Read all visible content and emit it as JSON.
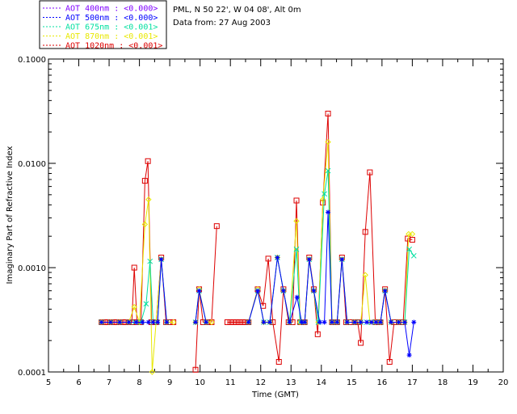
{
  "chart_data": {
    "type": "line",
    "title_lines": [
      "PML, N 50 22', W 04 08', Alt 0m",
      "Data from: 27 Aug 2003"
    ],
    "xlabel": "Time (GMT)",
    "ylabel": "Imaginary Part of Refractive Index",
    "xlim": [
      5,
      20
    ],
    "ylim": [
      0.0001,
      0.1
    ],
    "yscale": "log",
    "xticks": [
      5,
      6,
      7,
      8,
      9,
      10,
      11,
      12,
      13,
      14,
      15,
      16,
      17,
      18,
      19,
      20
    ],
    "yticks": [
      {
        "value": 0.0001,
        "label": "0.0001"
      },
      {
        "value": 0.001,
        "label": "0.0010"
      },
      {
        "value": 0.01,
        "label": "0.0100"
      },
      {
        "value": 0.1,
        "label": "0.1000"
      }
    ],
    "legend": [
      {
        "label": "AOT  400nm : <0.000>",
        "color": "#7f00ff"
      },
      {
        "label": "AOT  500nm : <0.000>",
        "color": "#0000ff"
      },
      {
        "label": "AOT  675nm : <0.001>",
        "color": "#00e0a0"
      },
      {
        "label": "AOT  870nm : <0.001>",
        "color": "#e8e800"
      },
      {
        "label": "AOT 1020nm : <0.001>",
        "color": "#dd0000"
      }
    ],
    "series": [
      {
        "name": "AOT 1020nm",
        "color": "#dd0000",
        "marker": "square",
        "segments": [
          [
            [
              6.75,
              0.0003
            ],
            [
              6.85,
              0.0003
            ],
            [
              6.95,
              0.0003
            ],
            [
              7.05,
              0.0003
            ],
            [
              7.15,
              0.0003
            ],
            [
              7.25,
              0.0003
            ],
            [
              7.35,
              0.0003
            ],
            [
              7.45,
              0.0003
            ],
            [
              7.55,
              0.0003
            ],
            [
              7.65,
              0.0003
            ],
            [
              7.75,
              0.0003
            ],
            [
              7.83,
              0.001
            ],
            [
              7.92,
              0.0003
            ],
            [
              8.05,
              0.0003
            ],
            [
              8.18,
              0.0068
            ],
            [
              8.28,
              0.0105
            ],
            [
              8.4,
              0.0003
            ],
            [
              8.55,
              0.0003
            ],
            [
              8.72,
              0.00125
            ],
            [
              8.88,
              0.0003
            ],
            [
              9.0,
              0.0003
            ],
            [
              9.12,
              0.0003
            ]
          ],
          [
            [
              9.85,
              0.000105
            ],
            [
              9.97,
              0.00062
            ],
            [
              10.1,
              0.0003
            ],
            [
              10.25,
              0.0003
            ],
            [
              10.38,
              0.0003
            ],
            [
              10.55,
              0.0025
            ]
          ],
          [
            [
              10.9,
              0.0003
            ],
            [
              11.0,
              0.0003
            ],
            [
              11.1,
              0.0003
            ],
            [
              11.2,
              0.0003
            ],
            [
              11.3,
              0.0003
            ],
            [
              11.4,
              0.0003
            ],
            [
              11.5,
              0.0003
            ],
            [
              11.6,
              0.0003
            ],
            [
              11.9,
              0.00062
            ],
            [
              12.08,
              0.00043
            ],
            [
              12.25,
              0.00122
            ],
            [
              12.4,
              0.0003
            ],
            [
              12.6,
              0.000125
            ],
            [
              12.75,
              0.00062
            ],
            [
              12.92,
              0.0003
            ],
            [
              13.05,
              0.0003
            ],
            [
              13.18,
              0.0044
            ],
            [
              13.3,
              0.0003
            ],
            [
              13.45,
              0.0003
            ],
            [
              13.6,
              0.00125
            ],
            [
              13.75,
              0.00062
            ],
            [
              13.88,
              0.00023
            ],
            [
              14.05,
              0.0042
            ],
            [
              14.22,
              0.03
            ],
            [
              14.35,
              0.0003
            ],
            [
              14.52,
              0.0003
            ],
            [
              14.68,
              0.00125
            ],
            [
              14.82,
              0.0003
            ],
            [
              14.95,
              0.0003
            ],
            [
              15.1,
              0.0003
            ],
            [
              15.2,
              0.0003
            ],
            [
              15.3,
              0.00019
            ],
            [
              15.45,
              0.0022
            ],
            [
              15.6,
              0.0082
            ],
            [
              15.78,
              0.0003
            ],
            [
              15.95,
              0.0003
            ],
            [
              16.1,
              0.00062
            ],
            [
              16.25,
              0.000125
            ],
            [
              16.4,
              0.0003
            ],
            [
              16.55,
              0.0003
            ],
            [
              16.7,
              0.0003
            ],
            [
              16.85,
              0.0019
            ],
            [
              17.0,
              0.00185
            ]
          ]
        ]
      },
      {
        "name": "AOT 870nm",
        "color": "#e8e800",
        "marker": "diamond",
        "segments": [
          [
            [
              6.75,
              0.0003
            ],
            [
              7.05,
              0.0003
            ],
            [
              7.35,
              0.0003
            ],
            [
              7.65,
              0.0003
            ],
            [
              7.83,
              0.00042
            ],
            [
              8.0,
              0.0003
            ],
            [
              8.18,
              0.0026
            ],
            [
              8.3,
              0.0045
            ],
            [
              8.42,
              0.0001
            ],
            [
              8.55,
              0.0003
            ],
            [
              8.72,
              0.0012
            ],
            [
              8.9,
              0.0003
            ],
            [
              9.12,
              0.0003
            ]
          ],
          [
            [
              9.85,
              0.0003
            ],
            [
              9.97,
              0.00062
            ],
            [
              10.2,
              0.0003
            ],
            [
              10.38,
              0.0003
            ]
          ],
          [
            [
              11.6,
              0.0003
            ],
            [
              11.9,
              0.00062
            ],
            [
              12.1,
              0.0003
            ],
            [
              12.3,
              0.0003
            ],
            [
              12.55,
              0.00125
            ],
            [
              12.75,
              0.0006
            ],
            [
              12.95,
              0.0003
            ],
            [
              13.18,
              0.0028
            ],
            [
              13.3,
              0.0003
            ],
            [
              13.45,
              0.0003
            ],
            [
              13.6,
              0.0012
            ],
            [
              13.75,
              0.0006
            ],
            [
              13.9,
              0.0003
            ],
            [
              14.05,
              0.0045
            ],
            [
              14.22,
              0.016
            ],
            [
              14.35,
              0.0003
            ],
            [
              14.52,
              0.0003
            ],
            [
              14.68,
              0.0012
            ],
            [
              14.85,
              0.0003
            ],
            [
              15.1,
              0.0003
            ],
            [
              15.3,
              0.0003
            ],
            [
              15.45,
              0.00085
            ],
            [
              15.6,
              0.0003
            ],
            [
              15.78,
              0.0003
            ],
            [
              15.95,
              0.0003
            ],
            [
              16.1,
              0.0006
            ],
            [
              16.3,
              0.0003
            ],
            [
              16.55,
              0.0003
            ],
            [
              16.75,
              0.0003
            ],
            [
              16.88,
              0.0021
            ],
            [
              17.0,
              0.0021
            ]
          ]
        ]
      },
      {
        "name": "AOT 675nm",
        "color": "#00e0a0",
        "marker": "cross",
        "segments": [
          [
            [
              6.75,
              0.0003
            ],
            [
              7.05,
              0.0003
            ],
            [
              7.35,
              0.0003
            ],
            [
              7.65,
              0.0003
            ],
            [
              7.85,
              0.0003
            ],
            [
              8.05,
              0.0003
            ],
            [
              8.22,
              0.00045
            ],
            [
              8.35,
              0.00115
            ],
            [
              8.45,
              0.0003
            ],
            [
              8.6,
              0.0003
            ],
            [
              8.72,
              0.0012
            ],
            [
              8.9,
              0.0003
            ]
          ],
          [
            [
              9.85,
              0.0003
            ],
            [
              9.97,
              0.0006
            ],
            [
              10.2,
              0.0003
            ]
          ],
          [
            [
              11.6,
              0.0003
            ],
            [
              11.9,
              0.0006
            ],
            [
              12.1,
              0.0003
            ],
            [
              12.3,
              0.0003
            ],
            [
              12.55,
              0.00125
            ],
            [
              12.75,
              0.0006
            ],
            [
              12.95,
              0.0003
            ],
            [
              13.18,
              0.0015
            ],
            [
              13.3,
              0.0003
            ],
            [
              13.45,
              0.0003
            ],
            [
              13.6,
              0.0012
            ],
            [
              13.75,
              0.0006
            ],
            [
              13.9,
              0.0003
            ],
            [
              14.1,
              0.0051
            ],
            [
              14.22,
              0.0085
            ],
            [
              14.35,
              0.0003
            ],
            [
              14.52,
              0.0003
            ],
            [
              14.68,
              0.0012
            ],
            [
              14.85,
              0.0003
            ],
            [
              15.1,
              0.0003
            ],
            [
              15.3,
              0.0003
            ],
            [
              15.5,
              0.0003
            ],
            [
              15.65,
              0.0003
            ],
            [
              15.8,
              0.0003
            ],
            [
              15.95,
              0.0003
            ],
            [
              16.1,
              0.0006
            ],
            [
              16.3,
              0.0003
            ],
            [
              16.55,
              0.0003
            ],
            [
              16.75,
              0.0003
            ],
            [
              16.9,
              0.0015
            ],
            [
              17.05,
              0.0013
            ]
          ]
        ]
      },
      {
        "name": "AOT 500nm",
        "color": "#0000ff",
        "marker": "asterisk",
        "segments": [
          [
            [
              6.75,
              0.0003
            ],
            [
              7.05,
              0.0003
            ],
            [
              7.35,
              0.0003
            ],
            [
              7.65,
              0.0003
            ],
            [
              7.9,
              0.0003
            ],
            [
              8.1,
              0.0003
            ],
            [
              8.3,
              0.0003
            ],
            [
              8.45,
              0.0003
            ],
            [
              8.6,
              0.0003
            ],
            [
              8.72,
              0.0012
            ],
            [
              8.9,
              0.0003
            ]
          ],
          [
            [
              9.85,
              0.0003
            ],
            [
              9.97,
              0.0006
            ],
            [
              10.2,
              0.0003
            ]
          ],
          [
            [
              11.6,
              0.0003
            ],
            [
              11.9,
              0.0006
            ],
            [
              12.1,
              0.0003
            ],
            [
              12.3,
              0.0003
            ],
            [
              12.55,
              0.00125
            ],
            [
              12.75,
              0.0006
            ],
            [
              12.95,
              0.0003
            ],
            [
              13.2,
              0.00052
            ],
            [
              13.35,
              0.0003
            ],
            [
              13.45,
              0.0003
            ],
            [
              13.6,
              0.0012
            ],
            [
              13.75,
              0.0006
            ],
            [
              13.95,
              0.0003
            ],
            [
              14.1,
              0.0003
            ],
            [
              14.22,
              0.0034
            ],
            [
              14.35,
              0.0003
            ],
            [
              14.52,
              0.0003
            ],
            [
              14.68,
              0.0012
            ],
            [
              14.85,
              0.0003
            ],
            [
              15.1,
              0.0003
            ],
            [
              15.3,
              0.0003
            ],
            [
              15.5,
              0.0003
            ],
            [
              15.65,
              0.0003
            ],
            [
              15.8,
              0.0003
            ],
            [
              15.95,
              0.0003
            ],
            [
              16.1,
              0.0006
            ],
            [
              16.3,
              0.0003
            ],
            [
              16.55,
              0.0003
            ],
            [
              16.75,
              0.0003
            ],
            [
              16.9,
              0.000145
            ],
            [
              17.05,
              0.0003
            ]
          ]
        ]
      }
    ]
  }
}
